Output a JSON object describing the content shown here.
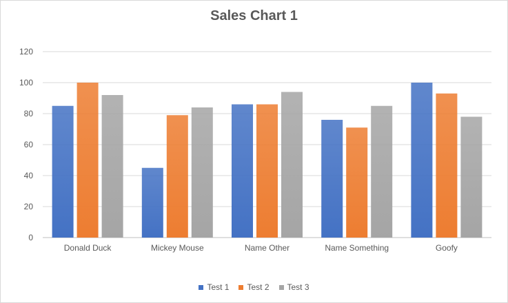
{
  "chart_data": {
    "type": "bar",
    "title": "Sales Chart 1",
    "categories": [
      "Donald Duck",
      "Mickey Mouse",
      "Name Other",
      "Name Something",
      "Goofy"
    ],
    "series": [
      {
        "name": "Test 1",
        "color": "#4472C4",
        "values": [
          85,
          45,
          86,
          76,
          100
        ]
      },
      {
        "name": "Test 2",
        "color": "#ED7D31",
        "values": [
          100,
          79,
          86,
          71,
          93
        ]
      },
      {
        "name": "Test 3",
        "color": "#A5A5A5",
        "values": [
          92,
          84,
          94,
          85,
          78
        ]
      }
    ],
    "ylim": [
      0,
      120
    ],
    "yticks": [
      0,
      20,
      40,
      60,
      80,
      100,
      120
    ],
    "grid": true,
    "legend": "bottom"
  }
}
